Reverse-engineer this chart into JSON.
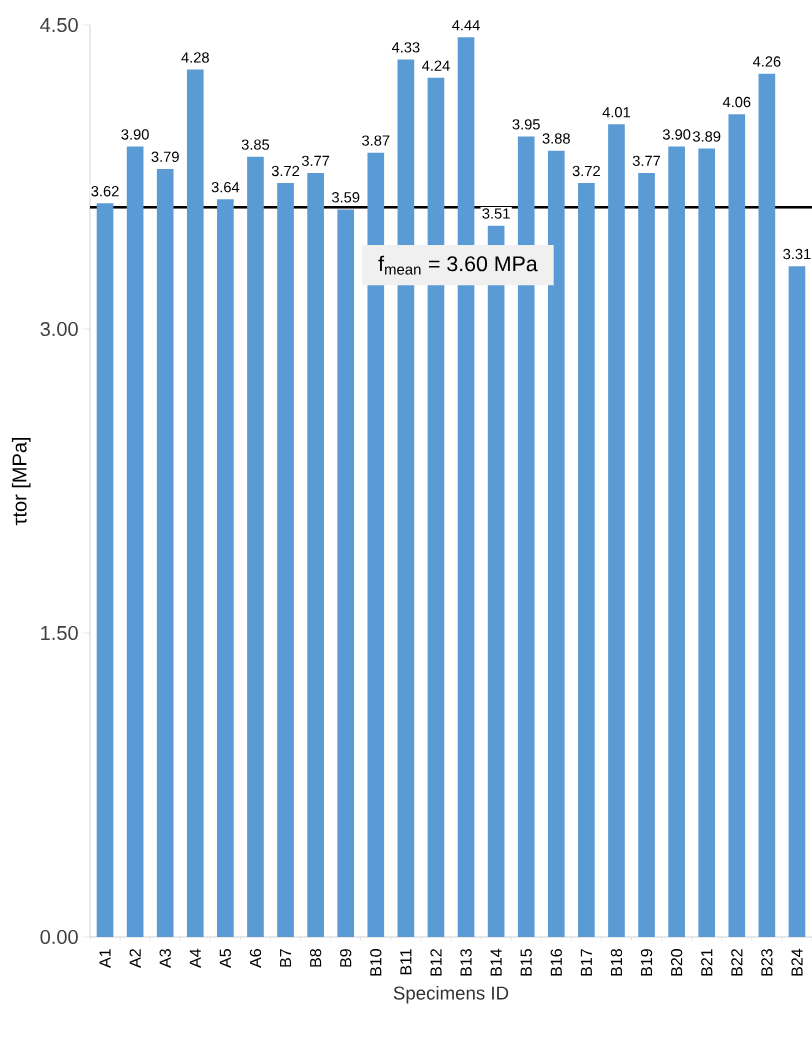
{
  "chart_data": {
    "type": "bar",
    "xlabel": "Specimens ID",
    "ylabel": "τtor [MPa]",
    "categories": [
      "A1",
      "A2",
      "A3",
      "A4",
      "A5",
      "A6",
      "B7",
      "B8",
      "B9",
      "B10",
      "B11",
      "B12",
      "B13",
      "B14",
      "B15",
      "B16",
      "B17",
      "B18",
      "B19",
      "B20",
      "B21",
      "B22",
      "B23",
      "B24"
    ],
    "values": [
      3.62,
      3.9,
      3.79,
      4.28,
      3.64,
      3.85,
      3.72,
      3.77,
      3.59,
      3.87,
      4.33,
      4.24,
      4.44,
      3.51,
      3.95,
      3.88,
      3.72,
      4.01,
      3.77,
      3.9,
      3.89,
      4.06,
      4.26,
      3.31
    ],
    "value_labels": [
      "3.62",
      "3.90",
      "3.79",
      "4.28",
      "3.64",
      "3.85",
      "3.72",
      "3.77",
      "3.59",
      "3.87",
      "4.33",
      "4.24",
      "4.44",
      "3.51",
      "3.95",
      "3.88",
      "3.72",
      "4.01",
      "3.77",
      "3.90",
      "3.89",
      "4.06",
      "4.26",
      "3.31"
    ],
    "color": "#5b9bd5",
    "ylim": [
      0,
      4.5
    ],
    "yticks": [
      {
        "value": 0,
        "label": "0.00"
      },
      {
        "value": 1.5,
        "label": "1.50"
      },
      {
        "value": 3,
        "label": "3.00"
      },
      {
        "value": 4.5,
        "label": "4.50"
      }
    ],
    "ref_lines": [
      {
        "axis": "y",
        "value": 3.6,
        "label": "f$_{mean}$ = 3.60 MPa",
        "color": "#000000",
        "line_style": "solid"
      }
    ],
    "grid": false
  }
}
